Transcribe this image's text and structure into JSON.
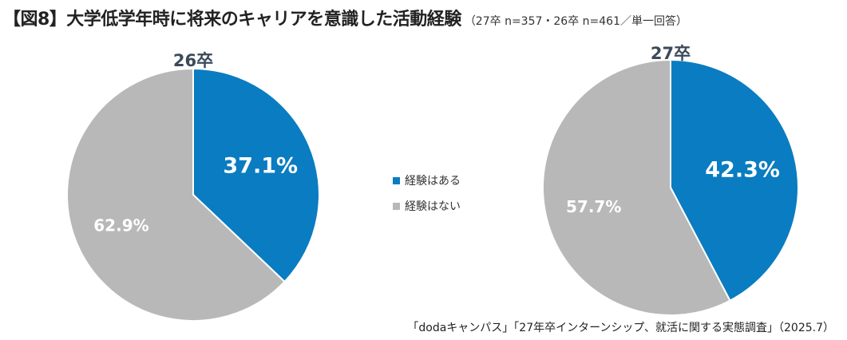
{
  "title": {
    "main": "【図8】大学低学年時に将来のキャリアを意識した活動経験",
    "note": "（27卒 n=357・26卒 n=461／単一回答）"
  },
  "colors": {
    "yes": "#0a7cc1",
    "no": "#b8b8b8"
  },
  "legend": [
    {
      "label": "経験はある",
      "color": "#0a7cc1"
    },
    {
      "label": "経験はない",
      "color": "#b8b8b8"
    }
  ],
  "chart_data": [
    {
      "type": "pie",
      "title": "26卒",
      "slices": [
        {
          "name": "経験はある",
          "value": 37.1,
          "label": "37.1%"
        },
        {
          "name": "経験はない",
          "value": 62.9,
          "label": "62.9%"
        }
      ]
    },
    {
      "type": "pie",
      "title": "27卒",
      "slices": [
        {
          "name": "経験はある",
          "value": 42.3,
          "label": "42.3%"
        },
        {
          "name": "経験はない",
          "value": 57.7,
          "label": "57.7%"
        }
      ]
    }
  ],
  "source": "「dodaキャンパス」「27年卒インターンシップ、就活に関する実態調査」（2025.7）"
}
